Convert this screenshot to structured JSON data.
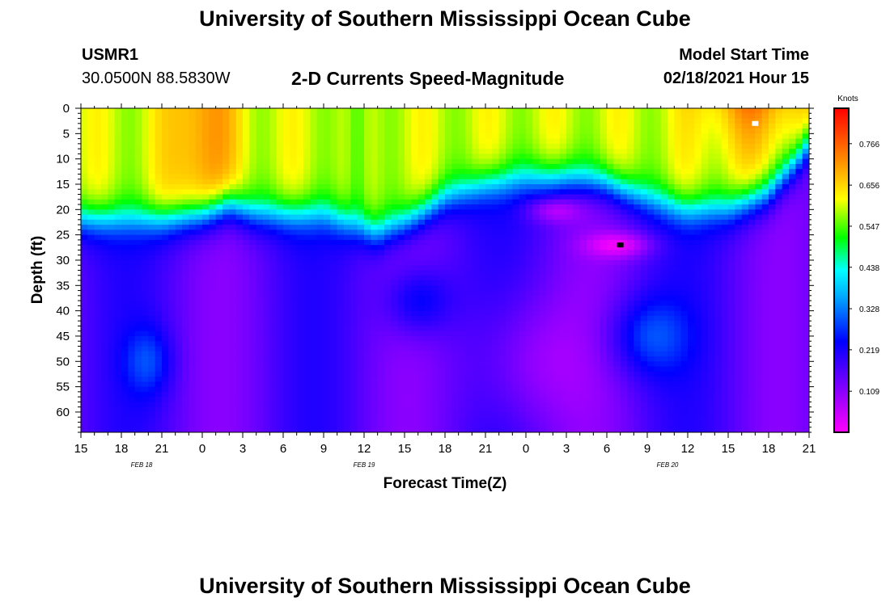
{
  "header": {
    "title": "University of Southern Mississippi Ocean Cube",
    "footer_title": "University of Southern Mississippi Ocean Cube",
    "station": "USMR1",
    "coords": "30.0500N 88.5830W",
    "chart_title": "2-D Currents Speed-Magnitude",
    "model_start_label": "Model Start Time",
    "model_start_value": "02/18/2021 Hour 15"
  },
  "chart_data": {
    "type": "heatmap",
    "title": "2-D Currents Speed-Magnitude",
    "xlabel": "Forecast Time(Z)",
    "ylabel": "Depth (ft)",
    "x_tick_labels": [
      "15",
      "18",
      "21",
      "0",
      "3",
      "6",
      "9",
      "12",
      "15",
      "18",
      "21",
      "0",
      "3",
      "6",
      "9",
      "12",
      "15",
      "18",
      "21"
    ],
    "x_range_hours": [
      0,
      54
    ],
    "date_labels": [
      {
        "text": "FEB 18",
        "hour": 4.5
      },
      {
        "text": "FEB 19",
        "hour": 21
      },
      {
        "text": "FEB 20",
        "hour": 43.5
      }
    ],
    "y_ticks": [
      0,
      5,
      10,
      15,
      20,
      25,
      30,
      35,
      40,
      45,
      50,
      55,
      60
    ],
    "y_range": [
      0,
      64
    ],
    "y_inverted": true,
    "colorbar": {
      "unit": "Knots",
      "tick_labels": [
        "0.766",
        "0.656",
        "0.547",
        "0.438",
        "0.328",
        "0.219",
        "0.109"
      ],
      "range": [
        0.0,
        0.86
      ]
    },
    "layer_boundary_depths": [
      {
        "hour": 0,
        "depth": 22
      },
      {
        "hour": 3,
        "depth": 22
      },
      {
        "hour": 6,
        "depth": 22
      },
      {
        "hour": 9,
        "depth": 21
      },
      {
        "hour": 11,
        "depth": 19
      },
      {
        "hour": 13,
        "depth": 21
      },
      {
        "hour": 15,
        "depth": 21
      },
      {
        "hour": 18,
        "depth": 21
      },
      {
        "hour": 20,
        "depth": 23
      },
      {
        "hour": 22,
        "depth": 25
      },
      {
        "hour": 24,
        "depth": 23
      },
      {
        "hour": 27,
        "depth": 18
      },
      {
        "hour": 30,
        "depth": 15
      },
      {
        "hour": 33,
        "depth": 14
      },
      {
        "hour": 36,
        "depth": 14
      },
      {
        "hour": 39,
        "depth": 15
      },
      {
        "hour": 42,
        "depth": 18
      },
      {
        "hour": 45,
        "depth": 20
      },
      {
        "hour": 48,
        "depth": 20
      },
      {
        "hour": 51,
        "depth": 17
      },
      {
        "hour": 53,
        "depth": 11
      },
      {
        "hour": 54,
        "depth": 7
      }
    ],
    "surface_max_speed_knots": 0.8,
    "mid_depth_min_speed_knots": 0.05,
    "markers": [
      {
        "label": "max",
        "hour": 50,
        "depth": 3,
        "color": "#ffffff"
      },
      {
        "label": "min",
        "hour": 40,
        "depth": 27,
        "color": "#000000"
      }
    ]
  }
}
